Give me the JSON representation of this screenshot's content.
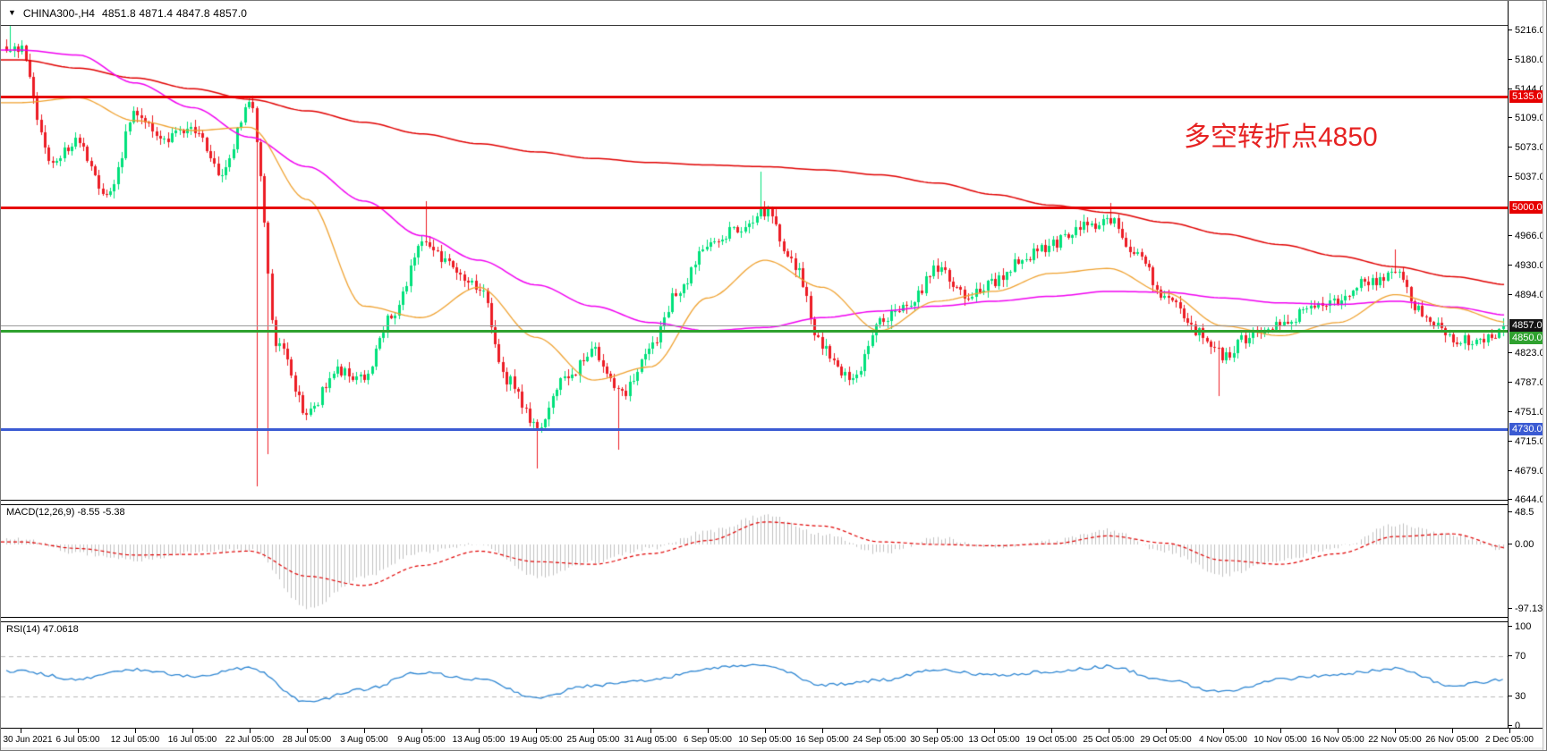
{
  "window": {
    "symbol": "CHINA300-,H4",
    "ohlc_text": "4851.8 4871.4 4847.8 4857.0",
    "open": "4851.8",
    "high": "4871.4",
    "low": "4847.8",
    "close": "4857.0"
  },
  "annotation": {
    "text": "多空转折点4850",
    "color": "#e62222"
  },
  "chart_data": {
    "type": "candlestick",
    "title": "CHINA300-,H4",
    "timeframe": "H4",
    "legend_position": "none",
    "grid": false,
    "ylim": [
      4588,
      5232
    ],
    "y_ticks": [
      "5216.0",
      "5180.0",
      "5144.0",
      "5109.0",
      "5073.0",
      "5037.0",
      "4966.0",
      "4930.0",
      "4894.0",
      "4823.0",
      "4787.0",
      "4751.0",
      "4715.0",
      "4679.0",
      "4644.0"
    ],
    "x_labels": [
      "30 Jun 2021",
      "6 Jul 05:00",
      "12 Jul 05:00",
      "16 Jul 05:00",
      "22 Jul 05:00",
      "28 Jul 05:00",
      "3 Aug 05:00",
      "9 Aug 05:00",
      "13 Aug 05:00",
      "19 Aug 05:00",
      "25 Aug 05:00",
      "31 Aug 05:00",
      "6 Sep 05:00",
      "10 Sep 05:00",
      "16 Sep 05:00",
      "24 Sep 05:00",
      "30 Sep 05:00",
      "13 Oct 05:00",
      "19 Oct 05:00",
      "25 Oct 05:00",
      "29 Oct 05:00",
      "4 Nov 05:00",
      "10 Nov 05:00",
      "16 Nov 05:00",
      "22 Nov 05:00",
      "26 Nov 05:00",
      "2 Dec 05:00"
    ],
    "candle_up_color": "#00e17b",
    "candle_down_color": "#ec1c24",
    "levels": [
      {
        "label": "5135.0",
        "value": 5135.0,
        "color": "#e60000",
        "role": "resistance"
      },
      {
        "label": "5000.0",
        "value": 5000.0,
        "color": "#e60000",
        "role": "resistance"
      },
      {
        "label": "4850.0",
        "value": 4850.0,
        "color": "#2fa12f",
        "role": "pivot"
      },
      {
        "label": "4730.0",
        "value": 4730.0,
        "color": "#3b5bd3",
        "role": "support"
      }
    ],
    "current_price": {
      "label": "4857.0",
      "value": 4857.0,
      "tag_color": "#141414",
      "line_color": "#9a9a9a"
    },
    "price_anchors": [
      5195,
      5060,
      5080,
      5010,
      5115,
      5085,
      5095,
      5040,
      5125,
      4830,
      4750,
      4800,
      4795,
      4870,
      4955,
      4930,
      4905,
      4790,
      4735,
      4790,
      4825,
      4770,
      4830,
      4900,
      4955,
      4975,
      4995,
      4930,
      4830,
      4790,
      4860,
      4880,
      4925,
      4895,
      4910,
      4940,
      4955,
      4975,
      4985,
      4940,
      4890,
      4850,
      4820,
      4845,
      4860,
      4875,
      4885,
      4910,
      4920,
      4870,
      4840,
      4838,
      4857
    ],
    "wick_events": [
      {
        "index": 1,
        "high": 5222
      },
      {
        "index": 65,
        "low": 4660
      },
      {
        "index": 68,
        "low": 4700
      },
      {
        "index": 109,
        "high": 5008
      },
      {
        "index": 138,
        "low": 4682
      },
      {
        "index": 159,
        "low": 4705
      },
      {
        "index": 196,
        "high": 5044
      },
      {
        "index": 287,
        "high": 5006
      },
      {
        "index": 315,
        "low": 4770
      },
      {
        "index": 361,
        "high": 4949
      }
    ],
    "moving_averages": [
      {
        "name": "ma-slow",
        "color": "#e00000",
        "width": 1.5,
        "points": [
          5180,
          5170,
          5158,
          5145,
          5132,
          5118,
          5104,
          5090,
          5078,
          5068,
          5060,
          5055,
          5052,
          5050,
          5046,
          5040,
          5030,
          5016,
          5003,
          4994,
          4982,
          4968,
          4955,
          4941,
          4928,
          4916,
          4906
        ]
      },
      {
        "name": "ma-mid",
        "color": "#f000f0",
        "width": 1.5,
        "points": [
          5192,
          5186,
          5152,
          5122,
          5086,
          5050,
          5008,
          4966,
          4936,
          4906,
          4880,
          4860,
          4850,
          4854,
          4866,
          4874,
          4880,
          4886,
          4892,
          4898,
          4897,
          4890,
          4884,
          4882,
          4886,
          4879,
          4869
        ]
      },
      {
        "name": "ma-fast",
        "color": "#efa12f",
        "width": 1.3,
        "points": [
          5128,
          5134,
          5106,
          5094,
          5098,
          5010,
          4880,
          4866,
          4903,
          4842,
          4790,
          4806,
          4890,
          4936,
          4903,
          4850,
          4886,
          4898,
          4920,
          4926,
          4896,
          4856,
          4844,
          4860,
          4894,
          4878,
          4860
        ]
      }
    ],
    "macd": {
      "label": "MACD(12,26,9) -8.55 -5.38",
      "name": "MACD(12,26,9)",
      "main_value": -8.55,
      "signal_value": -5.38,
      "scale_ticks": [
        {
          "label": "48.5",
          "value": 48.5
        },
        {
          "label": "0.00",
          "value": 0
        },
        {
          "label": "-97.13",
          "value": -97.13
        }
      ],
      "hist_color": "#c0c0c0",
      "signal_color": "#e00000",
      "hist_anchors": [
        8,
        -14,
        -24,
        -12,
        -8,
        -97,
        -48,
        -12,
        2,
        -50,
        -26,
        -6,
        20,
        44,
        16,
        -14,
        10,
        -6,
        5,
        22,
        -12,
        -46,
        -24,
        -4,
        30,
        14,
        -9
      ],
      "signal_anchors": [
        4,
        -6,
        -16,
        -15,
        -10,
        -48,
        -62,
        -32,
        -10,
        -26,
        -30,
        -14,
        6,
        34,
        28,
        4,
        0,
        -2,
        1,
        13,
        2,
        -24,
        -30,
        -14,
        12,
        16,
        -5.4
      ]
    },
    "rsi": {
      "label": "RSI(14) 47.0618",
      "name": "RSI(14)",
      "value": 47.0618,
      "scale_ticks": [
        {
          "label": "100",
          "value": 100
        },
        {
          "label": "70",
          "value": 70
        },
        {
          "label": "30",
          "value": 30
        },
        {
          "label": "0",
          "value": 0
        }
      ],
      "levels": [
        70,
        30
      ],
      "color": "#2e86d2",
      "anchors": [
        55,
        47,
        57,
        50,
        59,
        24,
        37,
        54,
        47,
        29,
        41,
        46,
        58,
        62,
        41,
        46,
        56,
        51,
        55,
        60,
        46,
        34,
        47,
        52,
        58,
        41,
        47
      ]
    }
  }
}
